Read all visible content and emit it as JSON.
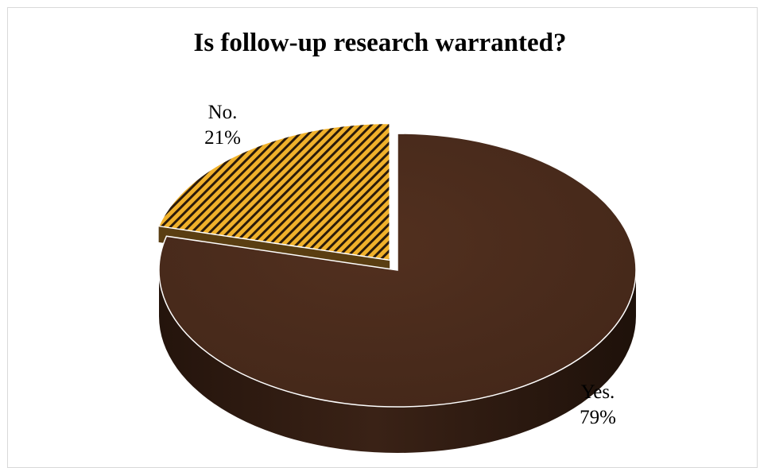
{
  "chart_data": {
    "type": "pie",
    "title": "Is follow-up research warranted?",
    "slices": [
      {
        "label": "Yes.",
        "value": 79,
        "value_text": "79%",
        "color": "#4a2c1f",
        "pattern": "solid"
      },
      {
        "label": "No.",
        "value": 21,
        "value_text": "21%",
        "color": "#f0b12b",
        "pattern": "diagonal-hatch",
        "exploded": true
      }
    ],
    "style": "3d"
  }
}
